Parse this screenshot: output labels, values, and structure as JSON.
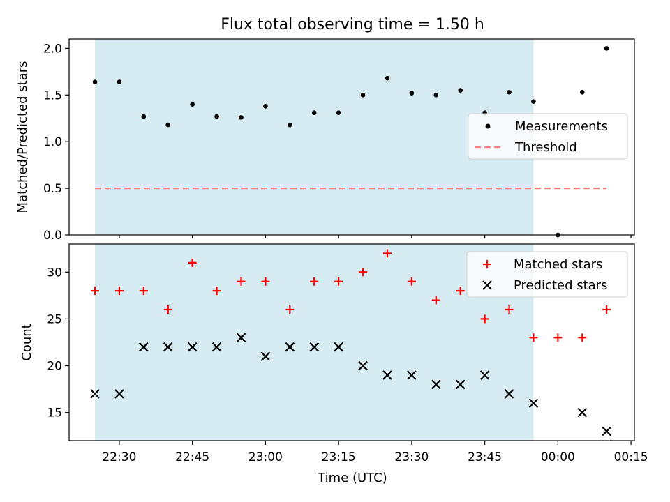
{
  "chart_data": {
    "type": "scatter",
    "title": "Flux total observing time = 1.50 h",
    "xlabel": "Time (UTC)",
    "x_ticks": [
      "22:30",
      "22:45",
      "23:00",
      "23:15",
      "23:30",
      "23:45",
      "00:00",
      "00:15"
    ],
    "x_tick_minutes": [
      0,
      15,
      30,
      45,
      60,
      75,
      90,
      105
    ],
    "xlim_minutes": [
      -10.3,
      105.7
    ],
    "shaded_region_minutes": [
      -5,
      85
    ],
    "shade_color": "#add8e6",
    "times": [
      "22:25",
      "22:30",
      "22:35",
      "22:40",
      "22:45",
      "22:50",
      "22:55",
      "23:00",
      "23:05",
      "23:10",
      "23:15",
      "23:20",
      "23:25",
      "23:30",
      "23:35",
      "23:40",
      "23:45",
      "23:50",
      "23:55",
      "00:00",
      "00:05",
      "00:10"
    ],
    "time_minutes": [
      -5,
      0,
      5,
      10,
      15,
      20,
      25,
      30,
      35,
      40,
      45,
      50,
      55,
      60,
      65,
      70,
      75,
      80,
      85,
      90,
      95,
      100
    ],
    "top": {
      "ylabel": "Matched/Predicted stars",
      "ylim": [
        0,
        2.1
      ],
      "yticks": [
        0.0,
        0.5,
        1.0,
        1.5,
        2.0
      ],
      "ytick_labels": [
        "0.0",
        "0.5",
        "1.0",
        "1.5",
        "2.0"
      ],
      "measurements": [
        1.64,
        1.64,
        1.27,
        1.18,
        1.4,
        1.27,
        1.26,
        1.38,
        1.18,
        1.31,
        1.31,
        1.5,
        1.68,
        1.52,
        1.5,
        1.55,
        1.31,
        1.53,
        1.43,
        0.0,
        1.53,
        2.0
      ],
      "threshold": 0.5,
      "threshold_range_minutes": [
        -5,
        100
      ],
      "legend": [
        "Measurements",
        "Threshold"
      ],
      "legend_position": "center-right",
      "colors": {
        "measurements": "#000000",
        "threshold": "#ff7f7f"
      }
    },
    "bottom": {
      "ylabel": "Count",
      "ylim": [
        12,
        33
      ],
      "yticks": [
        15,
        20,
        25,
        30
      ],
      "ytick_labels": [
        "15",
        "20",
        "25",
        "30"
      ],
      "series": [
        {
          "name": "Matched stars",
          "marker": "plus",
          "color": "#ff0000",
          "values": [
            28,
            28,
            28,
            26,
            31,
            28,
            29,
            29,
            26,
            29,
            29,
            30,
            32,
            29,
            27,
            28,
            25,
            26,
            23,
            23,
            23,
            26
          ]
        },
        {
          "name": "Predicted stars",
          "marker": "x",
          "color": "#000000",
          "values": [
            17,
            17,
            22,
            22,
            22,
            22,
            23,
            21,
            22,
            22,
            22,
            20,
            19,
            19,
            18,
            18,
            19,
            17,
            16,
            null,
            15,
            13
          ]
        }
      ],
      "legend_position": "top-right"
    }
  }
}
